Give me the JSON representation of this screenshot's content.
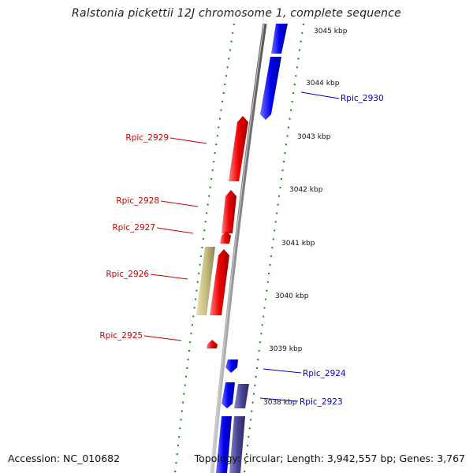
{
  "title": "Ralstonia pickettii 12J chromosome 1, complete sequence",
  "footer": {
    "accession": "Accession: NC_010682",
    "topology": "Topology: circular; Length: 3,942,557 bp; Genes: 3,767"
  },
  "colors": {
    "forward_gene": "#0000ee",
    "reverse_gene": "#ee0000",
    "other_gene_olive": "#c8c080",
    "other_gene_purple": "#4a4696",
    "backbone": "#888888",
    "tick": "#118811",
    "label_forward": "#0000cc",
    "label_reverse": "#cc0000"
  },
  "chart_data": {
    "type": "genome-map",
    "scale_unit": "kbp",
    "scale_ticks": [
      {
        "kbp": 3045,
        "label": "3045 kbp"
      },
      {
        "kbp": 3044,
        "label": "3044 kbp"
      },
      {
        "kbp": 3043,
        "label": "3043 kbp"
      },
      {
        "kbp": 3042,
        "label": "3042 kbp"
      },
      {
        "kbp": 3041,
        "label": "3041 kbp"
      },
      {
        "kbp": 3040,
        "label": "3040 kbp"
      },
      {
        "kbp": 3039,
        "label": "3039 kbp"
      },
      {
        "kbp": 3038,
        "label": "3038 kbp"
      }
    ],
    "gene_labels": [
      {
        "name": "Rpic_2930",
        "strand": "forward"
      },
      {
        "name": "Rpic_2929",
        "strand": "reverse"
      },
      {
        "name": "Rpic_2928",
        "strand": "reverse"
      },
      {
        "name": "Rpic_2927",
        "strand": "reverse"
      },
      {
        "name": "Rpic_2926",
        "strand": "reverse"
      },
      {
        "name": "Rpic_2925",
        "strand": "reverse"
      },
      {
        "name": "Rpic_2924",
        "strand": "forward"
      },
      {
        "name": "Rpic_2923",
        "strand": "forward"
      }
    ]
  }
}
